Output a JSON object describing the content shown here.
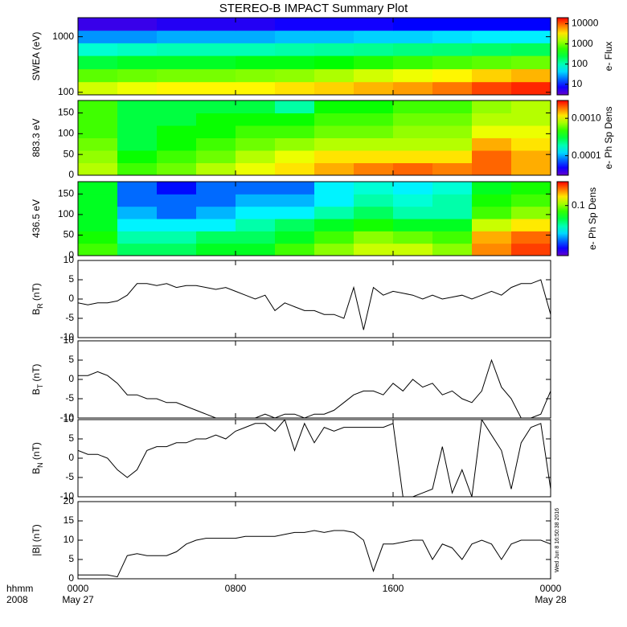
{
  "title": "STEREO-B IMPACT Summary Plot",
  "timestamp": "Wed Jun 8 16:50:38 2016",
  "xaxis": {
    "xlim": [
      0,
      24
    ],
    "xticks": [
      {
        "value": 0,
        "label": "0000"
      },
      {
        "value": 8,
        "label": "0800"
      },
      {
        "value": 16,
        "label": "1600"
      },
      {
        "value": 24,
        "label": "0000"
      }
    ],
    "dates": [
      "May 27",
      "May 28"
    ],
    "corner_labels": [
      "hhmm",
      "2008"
    ]
  },
  "chart_data": [
    {
      "type": "heatmap",
      "ylabel": [
        "SWEA (eV)"
      ],
      "ylog": true,
      "ylim": [
        90,
        2200
      ],
      "yticks": [
        100,
        1000
      ],
      "x": [
        1,
        3,
        5,
        7,
        9,
        11,
        13,
        15,
        17,
        19,
        21,
        23
      ],
      "y": [
        120,
        200,
        350,
        600,
        1000,
        1700
      ],
      "z": [
        [
          2000,
          2500,
          3000,
          3000,
          3000,
          3500,
          4000,
          5000,
          6000,
          8000,
          12000,
          15000
        ],
        [
          800,
          900,
          1000,
          1000,
          1100,
          1200,
          1500,
          2000,
          2500,
          3000,
          4000,
          5000
        ],
        [
          250,
          300,
          300,
          300,
          350,
          350,
          400,
          500,
          600,
          700,
          800,
          900
        ],
        [
          80,
          90,
          100,
          100,
          100,
          110,
          120,
          130,
          150,
          160,
          180,
          200
        ],
        [
          25,
          25,
          30,
          30,
          30,
          35,
          35,
          40,
          40,
          45,
          50,
          50
        ],
        [
          5,
          5,
          6,
          6,
          6,
          7,
          7,
          7,
          8,
          8,
          8,
          8
        ]
      ],
      "zlog": true,
      "zlim": [
        3,
        20000
      ],
      "zticks": [
        10,
        100,
        1000,
        10000
      ],
      "zlabel": "e- Flux"
    },
    {
      "type": "heatmap",
      "ylabel": [
        "883.3 eV"
      ],
      "ylim": [
        0,
        180
      ],
      "yticks": [
        0,
        50,
        100,
        150
      ],
      "x": [
        1,
        3,
        5,
        7,
        9,
        11,
        13,
        15,
        17,
        19,
        21,
        23
      ],
      "y": [
        15,
        45,
        75,
        105,
        135,
        165
      ],
      "z": [
        [
          0.0008,
          0.0005,
          0.0006,
          0.0008,
          0.001,
          0.0012,
          0.0015,
          0.0018,
          0.002,
          0.0018,
          0.002,
          0.0015
        ],
        [
          0.0007,
          0.0004,
          0.0005,
          0.0006,
          0.0008,
          0.001,
          0.0012,
          0.0012,
          0.0012,
          0.0012,
          0.002,
          0.0015
        ],
        [
          0.0006,
          0.0003,
          0.0004,
          0.0005,
          0.0006,
          0.0007,
          0.0008,
          0.0008,
          0.0008,
          0.0008,
          0.0015,
          0.0012
        ],
        [
          0.0005,
          0.0003,
          0.0004,
          0.0004,
          0.0005,
          0.0005,
          0.0006,
          0.0006,
          0.0007,
          0.0007,
          0.001,
          0.001
        ],
        [
          0.0005,
          0.0003,
          0.0003,
          0.0004,
          0.0004,
          0.0004,
          0.0005,
          0.0005,
          0.0006,
          0.0006,
          0.0008,
          0.0008
        ],
        [
          0.0005,
          0.0003,
          0.0003,
          0.0003,
          0.0003,
          0.0002,
          0.0004,
          0.0004,
          0.0005,
          0.0005,
          0.0007,
          0.0008
        ]
      ],
      "zlog": true,
      "zlim": [
        3e-05,
        0.003
      ],
      "zticks": [
        0.0001,
        {
          "value": 0.001,
          "label": "0.0010"
        }
      ],
      "zlabel": "e- Ph Sp Dens"
    },
    {
      "type": "heatmap",
      "ylabel": [
        "436.5 eV"
      ],
      "ylim": [
        0,
        180
      ],
      "yticks": [
        0,
        50,
        100,
        150
      ],
      "x": [
        1,
        3,
        5,
        7,
        9,
        11,
        13,
        15,
        17,
        19,
        21,
        23
      ],
      "y": [
        15,
        45,
        75,
        105,
        135,
        165
      ],
      "z": [
        [
          0.08,
          0.05,
          0.05,
          0.06,
          0.06,
          0.08,
          0.1,
          0.12,
          0.12,
          0.1,
          0.2,
          0.25
        ],
        [
          0.07,
          0.04,
          0.04,
          0.05,
          0.05,
          0.06,
          0.08,
          0.1,
          0.09,
          0.08,
          0.18,
          0.22
        ],
        [
          0.06,
          0.03,
          0.03,
          0.03,
          0.04,
          0.05,
          0.06,
          0.07,
          0.06,
          0.06,
          0.12,
          0.15
        ],
        [
          0.06,
          0.025,
          0.02,
          0.025,
          0.03,
          0.03,
          0.04,
          0.05,
          0.04,
          0.04,
          0.08,
          0.1
        ],
        [
          0.06,
          0.02,
          0.02,
          0.02,
          0.025,
          0.025,
          0.03,
          0.04,
          0.035,
          0.04,
          0.07,
          0.08
        ],
        [
          0.06,
          0.02,
          0.015,
          0.02,
          0.02,
          0.02,
          0.03,
          0.035,
          0.03,
          0.035,
          0.06,
          0.07
        ]
      ],
      "zlog": true,
      "zlim": [
        0.01,
        0.3
      ],
      "zticks": [
        0.1
      ],
      "zlabel": "e- Ph Sp Dens"
    },
    {
      "type": "line",
      "ylabel": [
        "B",
        "R",
        " (nT)"
      ],
      "ylim": [
        -10,
        10
      ],
      "yticks": [
        -10,
        -5,
        0,
        5,
        10
      ],
      "color": "#000000",
      "x": [
        0,
        0.5,
        1,
        1.5,
        2,
        2.5,
        3,
        3.5,
        4,
        4.5,
        5,
        5.5,
        6,
        6.5,
        7,
        7.5,
        8,
        8.5,
        9,
        9.5,
        10,
        10.5,
        11,
        11.5,
        12,
        12.5,
        13,
        13.5,
        14,
        14.5,
        15,
        15.5,
        16,
        16.5,
        17,
        17.5,
        18,
        18.5,
        19,
        19.5,
        20,
        20.5,
        21,
        21.5,
        22,
        22.5,
        23,
        23.5,
        24
      ],
      "values": [
        -1,
        -1.5,
        -1,
        -1,
        -0.5,
        1,
        4,
        4,
        3.5,
        4,
        3,
        3.5,
        3.5,
        3,
        2.5,
        3,
        2,
        1,
        0,
        1,
        -3,
        -1,
        -2,
        -3,
        -3,
        -4,
        -4,
        -5,
        3,
        -8,
        3,
        1,
        2,
        1.5,
        1,
        0,
        1,
        0,
        0.5,
        1,
        0,
        1,
        2,
        1,
        3,
        4,
        4,
        5,
        -4
      ]
    },
    {
      "type": "line",
      "ylabel": [
        "B",
        "T",
        " (nT)"
      ],
      "ylim": [
        -10,
        10
      ],
      "yticks": [
        -10,
        -5,
        0,
        5,
        10
      ],
      "color": "#000000",
      "x": [
        0,
        0.5,
        1,
        1.5,
        2,
        2.5,
        3,
        3.5,
        4,
        4.5,
        5,
        5.5,
        6,
        6.5,
        7,
        7.5,
        8,
        8.5,
        9,
        9.5,
        10,
        10.5,
        11,
        11.5,
        12,
        12.5,
        13,
        13.5,
        14,
        14.5,
        15,
        15.5,
        16,
        16.5,
        17,
        17.5,
        18,
        18.5,
        19,
        19.5,
        20,
        20.5,
        21,
        21.5,
        22,
        22.5,
        23,
        23.5,
        24
      ],
      "values": [
        1,
        1,
        2,
        1,
        -1,
        -4,
        -4,
        -5,
        -5,
        -6,
        -6,
        -7,
        -8,
        -9,
        -10,
        -10,
        -10,
        -10,
        -10,
        -9,
        -10,
        -9,
        -9,
        -10,
        -9,
        -9,
        -8,
        -6,
        -4,
        -3,
        -3,
        -4,
        -1,
        -3,
        0,
        -2,
        -1,
        -4,
        -3,
        -5,
        -6,
        -3,
        5,
        -2,
        -5,
        -10,
        -10,
        -9,
        -3
      ]
    },
    {
      "type": "line",
      "ylabel": [
        "B",
        "N",
        " (nT)"
      ],
      "ylim": [
        -10,
        10
      ],
      "yticks": [
        -10,
        -5,
        0,
        5,
        10
      ],
      "color": "#000000",
      "x": [
        0,
        0.5,
        1,
        1.5,
        2,
        2.5,
        3,
        3.5,
        4,
        4.5,
        5,
        5.5,
        6,
        6.5,
        7,
        7.5,
        8,
        8.5,
        9,
        9.5,
        10,
        10.5,
        11,
        11.5,
        12,
        12.5,
        13,
        13.5,
        14,
        14.5,
        15,
        15.5,
        16,
        16.5,
        17,
        17.5,
        18,
        18.5,
        19,
        19.5,
        20,
        20.5,
        21,
        21.5,
        22,
        22.5,
        23,
        23.5,
        24
      ],
      "values": [
        2,
        1,
        1,
        0,
        -3,
        -5,
        -3,
        2,
        3,
        3,
        4,
        4,
        5,
        5,
        6,
        5,
        7,
        8,
        9,
        9,
        7,
        10,
        2,
        9,
        4,
        8,
        7,
        8,
        8,
        8,
        8,
        8,
        9,
        -10,
        -10,
        -9,
        -8,
        3,
        -9,
        -3,
        -10,
        10,
        6,
        2,
        -8,
        4,
        8,
        9,
        -8
      ]
    },
    {
      "type": "line",
      "ylabel": [
        "|B| (nT)"
      ],
      "ylim": [
        0,
        20
      ],
      "yticks": [
        0,
        5,
        10,
        15,
        20
      ],
      "color": "#000000",
      "x": [
        0,
        0.5,
        1,
        1.5,
        2,
        2.5,
        3,
        3.5,
        4,
        4.5,
        5,
        5.5,
        6,
        6.5,
        7,
        7.5,
        8,
        8.5,
        9,
        9.5,
        10,
        10.5,
        11,
        11.5,
        12,
        12.5,
        13,
        13.5,
        14,
        14.5,
        15,
        15.5,
        16,
        16.5,
        17,
        17.5,
        18,
        18.5,
        19,
        19.5,
        20,
        20.5,
        21,
        21.5,
        22,
        22.5,
        23,
        23.5,
        24
      ],
      "values": [
        1,
        1,
        1,
        1,
        0.5,
        6,
        6.5,
        6,
        6,
        6,
        7,
        9,
        10,
        10.5,
        10.5,
        10.5,
        10.5,
        11,
        11,
        11,
        11,
        11.5,
        12,
        12,
        12.5,
        12,
        12.5,
        12.5,
        12,
        10,
        2,
        9,
        9,
        9.5,
        10,
        10,
        5,
        9,
        8,
        5,
        9,
        10,
        9,
        5,
        9,
        10,
        10,
        10,
        9
      ]
    }
  ]
}
